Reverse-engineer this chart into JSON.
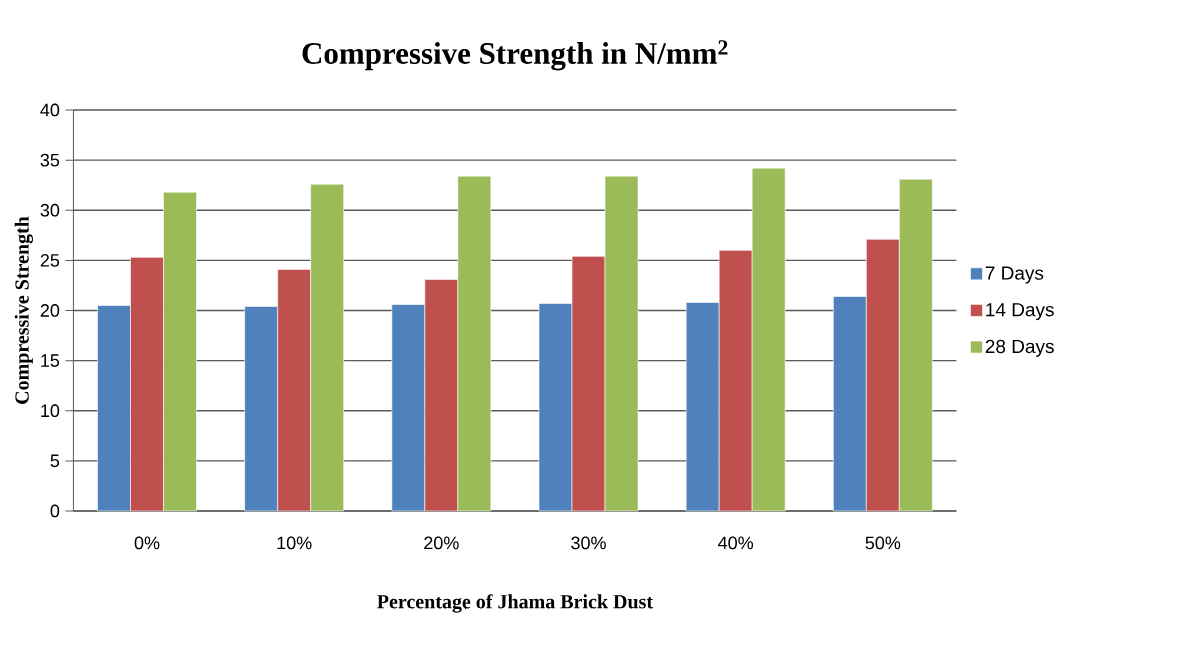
{
  "chart_data": {
    "type": "bar",
    "title": "Compressive Strength in N/mm$^{2}$",
    "xlabel": "Percentage of Jhama Brick Dust",
    "ylabel": "Compressive Strength",
    "categories": [
      "0%",
      "10%",
      "20%",
      "30%",
      "40%",
      "50%"
    ],
    "series": [
      {
        "name": "7 Days",
        "color": "#4f81bd",
        "values": [
          20.5,
          20.4,
          20.6,
          20.7,
          20.8,
          21.4
        ]
      },
      {
        "name": "14 Days",
        "color": "#c0504d",
        "values": [
          25.3,
          24.1,
          23.1,
          25.4,
          26.0,
          27.1
        ]
      },
      {
        "name": "28 Days",
        "color": "#9bbb59",
        "values": [
          31.8,
          32.6,
          33.4,
          33.4,
          34.2,
          33.1
        ]
      }
    ],
    "ylim": [
      0,
      40
    ],
    "yticks": [
      0,
      5,
      10,
      15,
      20,
      25,
      30,
      35,
      40
    ],
    "grid": "y",
    "legend": "right"
  }
}
